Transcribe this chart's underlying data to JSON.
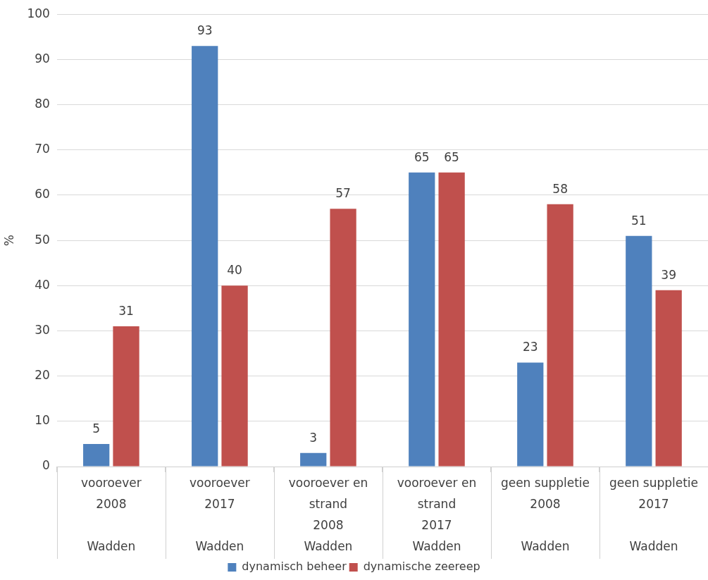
{
  "chart_data": {
    "type": "bar",
    "ylabel": "%",
    "categories": [
      "vooroever\n2008\n\nWadden",
      "vooroever\n2017\n\nWadden",
      "vooroever en\nstrand\n2008\nWadden",
      "vooroever en\nstrand\n2017\nWadden",
      "geen suppletie\n2008\n\nWadden",
      "geen suppletie\n2017\n\nWadden"
    ],
    "series": [
      {
        "name": "dynamisch beheer",
        "color": "#4f81bd",
        "values": [
          5,
          93,
          3,
          65,
          23,
          51
        ]
      },
      {
        "name": "dynamische zeereep",
        "color": "#c0504d",
        "values": [
          31,
          40,
          57,
          65,
          58,
          39
        ]
      }
    ],
    "ylim": [
      0,
      100
    ],
    "yticks": [
      0,
      10,
      20,
      30,
      40,
      50,
      60,
      70,
      80,
      90,
      100
    ],
    "grid": "y",
    "legend": "bottom",
    "data_labels": true
  }
}
